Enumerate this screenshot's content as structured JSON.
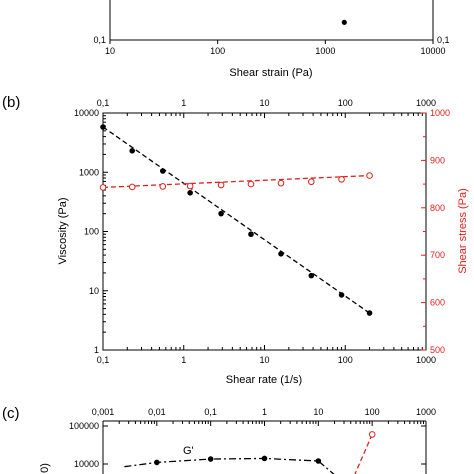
{
  "chart_data": [
    {
      "panel_label": "",
      "type": "scatter",
      "xlabel": "Shear strain (Pa)",
      "xscale": "log",
      "xlim": [
        10,
        10000
      ],
      "x_ticks": [
        "10",
        "100",
        "1000",
        "10000"
      ],
      "ylim_bottom_tick": "0,1",
      "series": [
        {
          "x": [
            1500
          ],
          "y": [
            0.3
          ]
        }
      ]
    },
    {
      "panel_label": "(b)",
      "type": "scatter",
      "xlabel": "Shear rate (1/s)",
      "ylabel": "Viscosity (Pa)",
      "y2label": "Shear stress (Pa)",
      "xscale": "log",
      "yscale": "log",
      "xlim": [
        0.1,
        1000
      ],
      "ylim": [
        1,
        10000
      ],
      "y2lim": [
        500,
        1000
      ],
      "x_ticks": [
        "0,1",
        "1",
        "10",
        "100",
        "1000"
      ],
      "y_ticks": [
        "1",
        "10",
        "100",
        "1000",
        "10000"
      ],
      "y2_ticks": [
        "500",
        "600",
        "700",
        "800",
        "900",
        "1000"
      ],
      "grid": false,
      "series": [
        {
          "axis": "left",
          "color": "#000000",
          "marker": "filled-circle",
          "fit": "dashed",
          "x": [
            0.1,
            0.23,
            0.55,
            1.2,
            2.9,
            6.8,
            16,
            38,
            90,
            200
          ],
          "y": [
            5800,
            2300,
            1050,
            450,
            200,
            90,
            42,
            18,
            8.5,
            4.2
          ]
        },
        {
          "axis": "right",
          "color": "#e0201b",
          "marker": "open-circle",
          "fit": "dashed",
          "x": [
            0.1,
            0.23,
            0.55,
            1.2,
            2.9,
            6.8,
            16,
            38,
            90,
            200
          ],
          "y": [
            843,
            844,
            845,
            846,
            848,
            850,
            852,
            855,
            860,
            868
          ]
        }
      ]
    },
    {
      "panel_label": "(c)",
      "type": "scatter",
      "ylabel_partial": "0)",
      "xscale": "log",
      "yscale": "log",
      "xlim": [
        0.001,
        1000
      ],
      "x_ticks": [
        "0,001",
        "0,01",
        "0,1",
        "1",
        "10",
        "100",
        "1000"
      ],
      "y_ticks": [
        "10000",
        "100000"
      ],
      "annotation": "G'",
      "series": [
        {
          "name": "G'",
          "color": "#000000",
          "marker": "filled-circle",
          "fit": "dash-dot",
          "x": [
            0.01,
            0.1,
            1,
            10
          ],
          "y": [
            11000,
            13500,
            14000,
            12000
          ]
        },
        {
          "color": "#e0201b",
          "marker": "open-circle",
          "fit": "dashed",
          "x": [
            100
          ],
          "y": [
            60000
          ]
        }
      ]
    }
  ]
}
